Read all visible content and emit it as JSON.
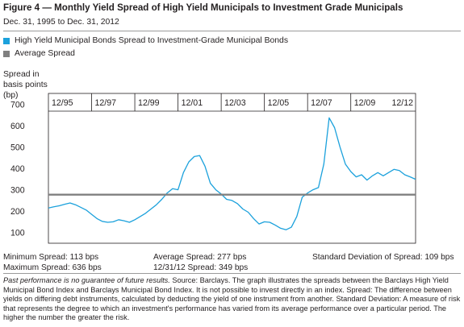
{
  "title": "Figure 4 — Monthly Yield Spread of High Yield Municipals to Investment Grade Municipals",
  "subtitle": "Dec. 31, 1995 to Dec. 31, 2012",
  "legend": [
    {
      "label": "High Yield Municipal Bonds Spread to Investment-Grade Municipal Bonds",
      "color": "#1ba1dc"
    },
    {
      "label": "Average Spread",
      "color": "#808080"
    }
  ],
  "ylabel": "Spread in\nbasis points\n(bp)",
  "stats": {
    "min": "Minimum Spread: 113 bps",
    "max": "Maximum Spread: 636 bps",
    "avg": "Average Spread: 277 bps",
    "last": "12/31/12 Spread: 349 bps",
    "std": "Standard Deviation of Spread: 109 bps"
  },
  "footnote": {
    "lead": "Past performance is no guarantee of future results.",
    "body": " Source: Barclays. The graph illustrates the spreads between the Barclays High Yield Municipal Bond Index and Barclays Municipal Bond Index. It is not possible to invest directly in an index. Spread: The difference between yields on differing debt instruments, calculated by deducting the yield of one instrument from another. Standard Deviation: A measure of risk that represents the degree to which an investment's performance has varied from its average performance over a particular period. The higher the number the greater the risk."
  },
  "chart_data": {
    "type": "line",
    "title": "Monthly Yield Spread of High Yield Municipals to Investment Grade Municipals",
    "ylabel": "Spread in basis points (bp)",
    "xlabel": "",
    "ylim": [
      50,
      750
    ],
    "xlim": [
      "1995-12",
      "2012-12"
    ],
    "grid": false,
    "legend_position": "top-left",
    "x_ticks": [
      "12/95",
      "12/97",
      "12/99",
      "12/01",
      "12/03",
      "12/05",
      "12/07",
      "12/09",
      "12/12"
    ],
    "x_tick_dates": [
      "1995-12",
      "1997-12",
      "1999-12",
      "2001-12",
      "2003-12",
      "2005-12",
      "2007-12",
      "2009-12",
      "2012-12"
    ],
    "y_ticks": [
      100,
      200,
      300,
      400,
      500,
      600,
      700
    ],
    "series": [
      {
        "name": "High Yield Municipal Bonds Spread to Investment-Grade Municipal Bonds",
        "color": "#1ba1dc",
        "points": [
          [
            "1995-12",
            215
          ],
          [
            "1996-03",
            220
          ],
          [
            "1996-06",
            225
          ],
          [
            "1996-09",
            232
          ],
          [
            "1996-12",
            238
          ],
          [
            "1997-03",
            230
          ],
          [
            "1997-06",
            218
          ],
          [
            "1997-09",
            205
          ],
          [
            "1997-12",
            185
          ],
          [
            "1998-03",
            165
          ],
          [
            "1998-06",
            152
          ],
          [
            "1998-09",
            148
          ],
          [
            "1998-12",
            150
          ],
          [
            "1999-03",
            160
          ],
          [
            "1999-06",
            155
          ],
          [
            "1999-09",
            148
          ],
          [
            "1999-12",
            160
          ],
          [
            "2000-03",
            175
          ],
          [
            "2000-06",
            190
          ],
          [
            "2000-09",
            210
          ],
          [
            "2000-12",
            230
          ],
          [
            "2001-03",
            255
          ],
          [
            "2001-06",
            285
          ],
          [
            "2001-09",
            305
          ],
          [
            "2001-12",
            300
          ],
          [
            "2002-03",
            380
          ],
          [
            "2002-06",
            430
          ],
          [
            "2002-09",
            455
          ],
          [
            "2002-12",
            460
          ],
          [
            "2003-03",
            410
          ],
          [
            "2003-06",
            330
          ],
          [
            "2003-09",
            300
          ],
          [
            "2003-12",
            280
          ],
          [
            "2004-03",
            255
          ],
          [
            "2004-06",
            250
          ],
          [
            "2004-09",
            235
          ],
          [
            "2004-12",
            210
          ],
          [
            "2005-03",
            195
          ],
          [
            "2005-06",
            165
          ],
          [
            "2005-09",
            140
          ],
          [
            "2005-12",
            150
          ],
          [
            "2006-03",
            148
          ],
          [
            "2006-06",
            135
          ],
          [
            "2006-09",
            120
          ],
          [
            "2006-12",
            113
          ],
          [
            "2007-03",
            125
          ],
          [
            "2007-06",
            175
          ],
          [
            "2007-09",
            265
          ],
          [
            "2007-12",
            285
          ],
          [
            "2008-03",
            300
          ],
          [
            "2008-06",
            310
          ],
          [
            "2008-09",
            420
          ],
          [
            "2008-12",
            636
          ],
          [
            "2009-03",
            590
          ],
          [
            "2009-06",
            500
          ],
          [
            "2009-09",
            420
          ],
          [
            "2009-12",
            385
          ],
          [
            "2010-03",
            360
          ],
          [
            "2010-06",
            370
          ],
          [
            "2010-09",
            345
          ],
          [
            "2010-12",
            365
          ],
          [
            "2011-03",
            380
          ],
          [
            "2011-06",
            365
          ],
          [
            "2011-09",
            380
          ],
          [
            "2011-12",
            395
          ],
          [
            "2012-03",
            390
          ],
          [
            "2012-06",
            370
          ],
          [
            "2012-09",
            360
          ],
          [
            "2012-12",
            349
          ]
        ]
      },
      {
        "name": "Average Spread",
        "color": "#808080",
        "points": [
          [
            "1995-12",
            277
          ],
          [
            "2012-12",
            277
          ]
        ]
      }
    ]
  }
}
